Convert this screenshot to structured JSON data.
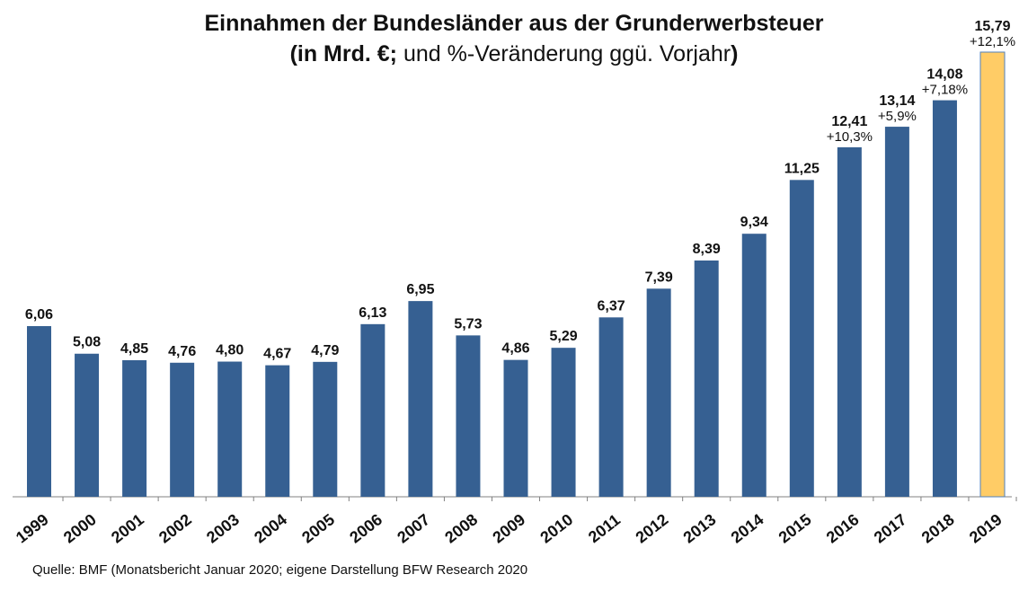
{
  "chart_data": {
    "type": "bar",
    "title": "Einnahmen der Bundesländer aus der Grunderwerbsteuer",
    "subtitle_bold_open": "(in Mrd. €;",
    "subtitle_regular": " und %-Veränderung ggü. Vorjahr",
    "subtitle_bold_close": ")",
    "categories": [
      "1999",
      "2000",
      "2001",
      "2002",
      "2003",
      "2004",
      "2005",
      "2006",
      "2007",
      "2008",
      "2009",
      "2010",
      "2011",
      "2012",
      "2013",
      "2014",
      "2015",
      "2016",
      "2017",
      "2018",
      "2019"
    ],
    "values": [
      6.06,
      5.08,
      4.85,
      4.76,
      4.8,
      4.67,
      4.79,
      6.13,
      6.95,
      5.73,
      4.86,
      5.29,
      6.37,
      7.39,
      8.39,
      9.34,
      11.25,
      12.41,
      13.14,
      14.08,
      15.79
    ],
    "value_labels": [
      "6,06",
      "5,08",
      "4,85",
      "4,76",
      "4,80",
      "4,67",
      "4,79",
      "6,13",
      "6,95",
      "5,73",
      "4,86",
      "5,29",
      "6,37",
      "7,39",
      "8,39",
      "9,34",
      "11,25",
      "12,41",
      "13,14",
      "14,08",
      "15,79"
    ],
    "change_labels": [
      "",
      "",
      "",
      "",
      "",
      "",
      "",
      "",
      "",
      "",
      "",
      "",
      "",
      "",
      "",
      "",
      "",
      "+10,3%",
      "+5,9%",
      "+7,18%",
      "+12,1%"
    ],
    "highlight_index": 20,
    "ylim": [
      0,
      15.79
    ],
    "grid": false,
    "xlabel": "",
    "ylabel": "",
    "colors": {
      "bar": "#366092",
      "highlight": "#FFCC66",
      "highlight_border": "#4F81BD",
      "axis": "#808080"
    }
  },
  "source": "Quelle: BMF (Monatsbericht Januar 2020; eigene Darstellung BFW Research 2020"
}
